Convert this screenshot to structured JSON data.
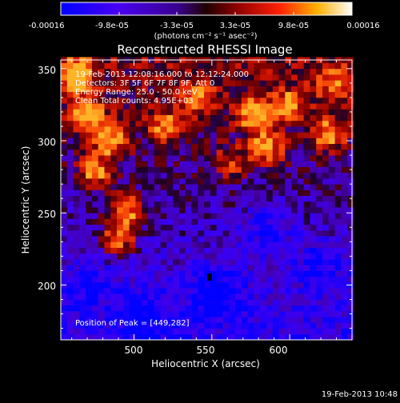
{
  "colorbar": {
    "tick_labels": [
      "-0.00016",
      "-9.8e-05",
      "-3.3e-05",
      "3.3e-05",
      "9.8e-05",
      "0.00016"
    ],
    "unit_label": "(photons cm⁻² s⁻¹ asec⁻²)",
    "range": [
      -0.00016,
      0.00016
    ],
    "colors": [
      "#0000ff",
      "#5000e0",
      "#4400aa",
      "#8a0000",
      "#ff2000",
      "#ffc000",
      "#ffffff"
    ]
  },
  "chart_data": {
    "type": "heatmap",
    "title": "Reconstructed RHESSI Image",
    "xlabel": "Heliocentric X (arcsec)",
    "ylabel": "Heliocentric Y (arcsec)",
    "xlim": [
      453,
      640
    ],
    "ylim": [
      162,
      356
    ],
    "xticks": [
      500,
      550,
      600
    ],
    "yticks": [
      200,
      250,
      300,
      350
    ],
    "xtick_labels": [
      "500",
      "550",
      "600"
    ],
    "ytick_labels": [
      "200",
      "250",
      "300",
      "350"
    ],
    "info_lines": [
      "19-Feb-2013 12:08:16.000 to 12:12:24.000",
      "Detectors: 3F 5F 6F 7F 8F 9F, Att 0",
      "Energy Range: 25.0 - 50.0 keV",
      "Clean     Total counts: 4.95E+03"
    ],
    "peak_label": "Position of Peak = [449,282]",
    "peak_position": [
      449,
      282
    ],
    "hot_regions": [
      {
        "x": 463,
        "y": 345,
        "amp": 0.95
      },
      {
        "x": 470,
        "y": 318,
        "amp": 0.85
      },
      {
        "x": 484,
        "y": 300,
        "amp": 0.9
      },
      {
        "x": 475,
        "y": 278,
        "amp": 0.8
      },
      {
        "x": 495,
        "y": 252,
        "amp": 0.9
      },
      {
        "x": 490,
        "y": 232,
        "amp": 0.85
      },
      {
        "x": 520,
        "y": 310,
        "amp": 0.7
      },
      {
        "x": 540,
        "y": 330,
        "amp": 0.6
      },
      {
        "x": 578,
        "y": 318,
        "amp": 0.9
      },
      {
        "x": 585,
        "y": 295,
        "amp": 0.8
      },
      {
        "x": 600,
        "y": 325,
        "amp": 0.65
      },
      {
        "x": 625,
        "y": 305,
        "amp": 0.75
      },
      {
        "x": 628,
        "y": 340,
        "amp": 0.55
      },
      {
        "x": 562,
        "y": 285,
        "amp": 0.5
      }
    ],
    "cold_regions": [
      {
        "x": 552,
        "y": 195,
        "amp": 0.9
      },
      {
        "x": 585,
        "y": 240,
        "amp": 0.6
      },
      {
        "x": 505,
        "y": 180,
        "amp": 0.7
      },
      {
        "x": 620,
        "y": 215,
        "amp": 0.55
      },
      {
        "x": 470,
        "y": 200,
        "amp": 0.45
      }
    ]
  },
  "footer": {
    "timestamp": "19-Feb-2013 10:48"
  }
}
